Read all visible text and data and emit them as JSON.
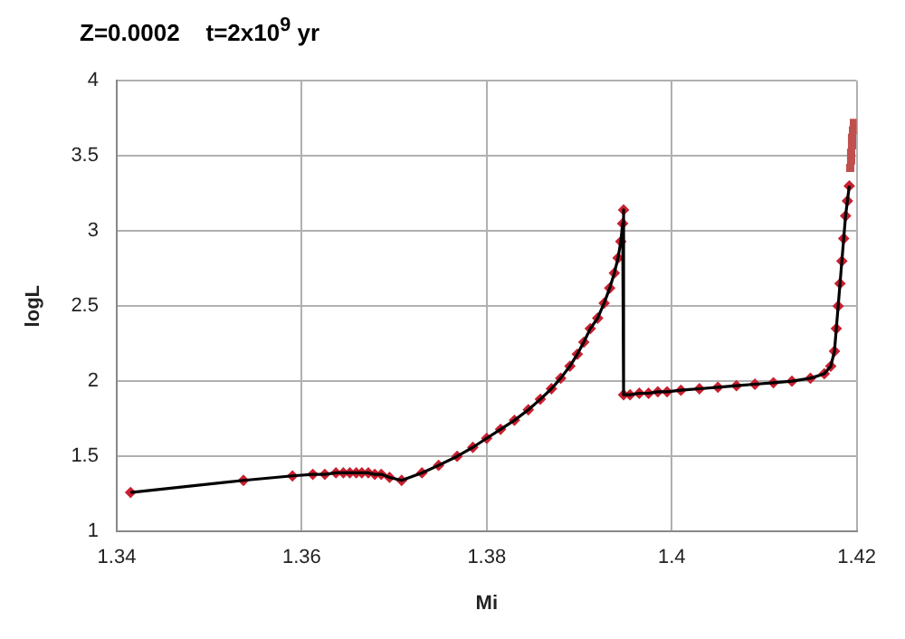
{
  "chart_data": {
    "type": "line",
    "title": "Z=0.0002    t=2x10$^{9}$ yr",
    "xlabel": "Mi",
    "ylabel": "logL",
    "xlim": [
      1.34,
      1.42
    ],
    "xticks": [
      1.34,
      1.36,
      1.38,
      {
        "value": 1.4,
        "label": "1.4"
      },
      1.42
    ],
    "ylim": [
      1,
      4
    ],
    "yticks": [
      1,
      1.5,
      2,
      2.5,
      3,
      3.5,
      4
    ],
    "grid": true,
    "series": [
      {
        "color": "#000000",
        "marker": "none",
        "x": [
          1.3415,
          1.3537,
          1.359,
          1.3612,
          1.3625,
          1.3637,
          1.3645,
          1.3652,
          1.3659,
          1.3665,
          1.3672,
          1.3679,
          1.3686,
          1.3695,
          1.3708,
          1.373,
          1.3748,
          1.3768,
          1.3785,
          1.38,
          1.3815,
          1.383,
          1.3845,
          1.3858,
          1.387,
          1.388,
          1.389,
          1.3898,
          1.3905,
          1.3912,
          1.392,
          1.3927,
          1.3933,
          1.3938,
          1.3942,
          1.3945,
          1.3947,
          1.3948,
          1.3948,
          1.3955,
          1.3965,
          1.3975,
          1.3985,
          1.3995,
          1.401,
          1.403,
          1.405,
          1.407,
          1.409,
          1.411,
          1.413,
          1.415,
          1.4165,
          1.4172,
          1.4176,
          1.4178,
          1.418,
          1.4182,
          1.4184,
          1.4186,
          1.4188,
          1.419,
          1.4192
        ],
        "values": [
          1.26,
          1.34,
          1.37,
          1.38,
          1.38,
          1.39,
          1.39,
          1.39,
          1.39,
          1.39,
          1.39,
          1.38,
          1.38,
          1.36,
          1.34,
          1.39,
          1.44,
          1.5,
          1.56,
          1.62,
          1.68,
          1.74,
          1.81,
          1.88,
          1.95,
          2.02,
          2.1,
          2.18,
          2.26,
          2.35,
          2.42,
          2.52,
          2.62,
          2.72,
          2.82,
          2.93,
          3.05,
          3.14,
          1.91,
          1.91,
          1.92,
          1.92,
          1.93,
          1.93,
          1.94,
          1.95,
          1.96,
          1.97,
          1.98,
          1.99,
          2.0,
          2.02,
          2.05,
          2.1,
          2.2,
          2.35,
          2.5,
          2.65,
          2.8,
          2.95,
          3.1,
          3.2,
          3.3
        ]
      },
      {
        "type": "scatter",
        "color": "#c8202f",
        "marker": "diamond",
        "x": [
          1.3415,
          1.3537,
          1.359,
          1.3612,
          1.3625,
          1.3637,
          1.3645,
          1.3652,
          1.3659,
          1.3665,
          1.3672,
          1.3679,
          1.3686,
          1.3695,
          1.3708,
          1.373,
          1.3748,
          1.3768,
          1.3785,
          1.38,
          1.3815,
          1.383,
          1.3845,
          1.3858,
          1.387,
          1.388,
          1.389,
          1.3898,
          1.3905,
          1.3912,
          1.392,
          1.3927,
          1.3933,
          1.3938,
          1.3942,
          1.3945,
          1.3947,
          1.3948,
          1.3948,
          1.3955,
          1.3965,
          1.3975,
          1.3985,
          1.3995,
          1.401,
          1.403,
          1.405,
          1.407,
          1.409,
          1.411,
          1.413,
          1.415,
          1.4165,
          1.4172,
          1.4176,
          1.4178,
          1.418,
          1.4182,
          1.4184,
          1.4186,
          1.4188,
          1.419,
          1.4192
        ],
        "values": [
          1.26,
          1.34,
          1.37,
          1.38,
          1.38,
          1.39,
          1.39,
          1.39,
          1.39,
          1.39,
          1.39,
          1.38,
          1.38,
          1.36,
          1.34,
          1.39,
          1.44,
          1.5,
          1.56,
          1.62,
          1.68,
          1.74,
          1.81,
          1.88,
          1.95,
          2.02,
          2.1,
          2.18,
          2.26,
          2.35,
          2.42,
          2.52,
          2.62,
          2.72,
          2.82,
          2.93,
          3.05,
          3.14,
          1.91,
          1.91,
          1.92,
          1.92,
          1.93,
          1.93,
          1.94,
          1.95,
          1.96,
          1.97,
          1.98,
          1.99,
          2.0,
          2.02,
          2.05,
          2.1,
          2.2,
          2.35,
          2.5,
          2.65,
          2.8,
          2.95,
          3.1,
          3.2,
          3.3
        ]
      },
      {
        "type": "scatter",
        "color": "#c0504d",
        "marker": "square",
        "x": [
          1.4193,
          1.4194,
          1.4194,
          1.4195,
          1.4195,
          1.4196,
          1.4197
        ],
        "values": [
          3.42,
          3.47,
          3.52,
          3.57,
          3.62,
          3.67,
          3.72
        ]
      }
    ]
  }
}
